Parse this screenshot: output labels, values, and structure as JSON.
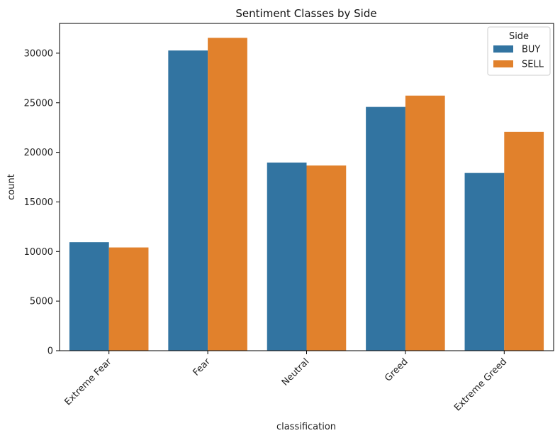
{
  "chart_data": {
    "type": "bar",
    "title": "Sentiment Classes by Side",
    "xlabel": "classification",
    "ylabel": "count",
    "categories": [
      "Extreme Fear",
      "Fear",
      "Neutral",
      "Greed",
      "Extreme Greed"
    ],
    "series": [
      {
        "name": "BUY",
        "color": "#3274a1",
        "values": [
          10940,
          30270,
          18970,
          24580,
          17920
        ]
      },
      {
        "name": "SELL",
        "color": "#e1812c",
        "values": [
          10410,
          31550,
          18670,
          25720,
          22060
        ]
      }
    ],
    "ylim": [
      0,
      33000
    ],
    "yticks": [
      0,
      5000,
      10000,
      15000,
      20000,
      25000,
      30000
    ],
    "grid": false,
    "legend": {
      "title": "Side",
      "placement": "top-right"
    },
    "xtick_rotation": 45
  }
}
